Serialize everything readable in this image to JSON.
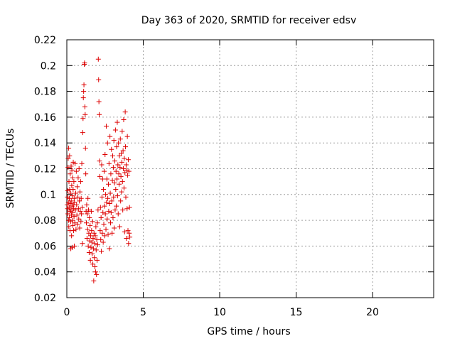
{
  "chart_data": {
    "type": "scatter",
    "title": "Day 363 of 2020, SRMTID for receiver edsv",
    "xlabel": "GPS time / hours",
    "ylabel": "SRMTID / TECUs",
    "xlim": [
      0,
      24
    ],
    "ylim": [
      0.02,
      0.22
    ],
    "x_ticks": [
      0,
      5,
      10,
      15,
      20
    ],
    "x_tick_labels": [
      "0",
      "5",
      "10",
      "15",
      "20"
    ],
    "y_ticks": [
      0.02,
      0.04,
      0.06,
      0.08,
      0.1,
      0.12,
      0.14,
      0.16,
      0.18,
      0.2,
      0.22
    ],
    "y_tick_labels": [
      "0.02",
      "0.04",
      "0.06",
      "0.08",
      "0.1",
      "0.12",
      "0.14",
      "0.16",
      "0.18",
      "0.2",
      "0.22"
    ],
    "grid": true,
    "marker": "+",
    "color": "#dd0000",
    "series": [
      {
        "points": [
          [
            0.02,
            0.092
          ],
          [
            0.04,
            0.098
          ],
          [
            0.05,
            0.089
          ],
          [
            0.06,
            0.103
          ],
          [
            0.07,
            0.085
          ],
          [
            0.08,
            0.121
          ],
          [
            0.09,
            0.128
          ],
          [
            0.1,
            0.094
          ],
          [
            0.11,
            0.08
          ],
          [
            0.12,
            0.136
          ],
          [
            0.13,
            0.075
          ],
          [
            0.14,
            0.11
          ],
          [
            0.15,
            0.09
          ],
          [
            0.16,
            0.097
          ],
          [
            0.17,
            0.082
          ],
          [
            0.18,
            0.13
          ],
          [
            0.19,
            0.104
          ],
          [
            0.2,
            0.087
          ],
          [
            0.21,
            0.072
          ],
          [
            0.22,
            0.116
          ],
          [
            0.23,
            0.093
          ],
          [
            0.24,
            0.101
          ],
          [
            0.25,
            0.079
          ],
          [
            0.26,
            0.058
          ],
          [
            0.27,
            0.088
          ],
          [
            0.28,
            0.122
          ],
          [
            0.29,
            0.095
          ],
          [
            0.3,
            0.084
          ],
          [
            0.31,
            0.068
          ],
          [
            0.32,
            0.107
          ],
          [
            0.33,
            0.119
          ],
          [
            0.34,
            0.091
          ],
          [
            0.35,
            0.059
          ],
          [
            0.36,
            0.099
          ],
          [
            0.37,
            0.08
          ],
          [
            0.38,
            0.113
          ],
          [
            0.39,
            0.086
          ],
          [
            0.4,
            0.076
          ],
          [
            0.41,
            0.104
          ],
          [
            0.42,
            0.125
          ],
          [
            0.43,
            0.092
          ],
          [
            0.44,
            0.072
          ],
          [
            0.45,
            0.089
          ],
          [
            0.46,
            0.11
          ],
          [
            0.47,
            0.083
          ],
          [
            0.48,
            0.097
          ],
          [
            0.49,
            0.06
          ],
          [
            0.5,
            0.094
          ],
          [
            0.52,
            0.078
          ],
          [
            0.54,
            0.124
          ],
          [
            0.56,
            0.088
          ],
          [
            0.58,
            0.101
          ],
          [
            0.6,
            0.073
          ],
          [
            0.62,
            0.118
          ],
          [
            0.64,
            0.092
          ],
          [
            0.66,
            0.084
          ],
          [
            0.68,
            0.106
          ],
          [
            0.7,
            0.077
          ],
          [
            0.72,
            0.098
          ],
          [
            0.74,
            0.113
          ],
          [
            0.76,
            0.089
          ],
          [
            0.78,
            0.081
          ],
          [
            0.8,
            0.12
          ],
          [
            0.82,
            0.095
          ],
          [
            0.84,
            0.074
          ],
          [
            0.86,
            0.102
          ],
          [
            0.88,
            0.087
          ],
          [
            0.9,
            0.11
          ],
          [
            0.92,
            0.079
          ],
          [
            0.94,
            0.097
          ],
          [
            0.96,
            0.085
          ],
          [
            0.98,
            0.124
          ],
          [
            1.0,
            0.09
          ],
          [
            1.02,
            0.062
          ],
          [
            1.04,
            0.148
          ],
          [
            1.06,
            0.159
          ],
          [
            1.08,
            0.175
          ],
          [
            1.1,
            0.18
          ],
          [
            1.12,
            0.185
          ],
          [
            1.14,
            0.201
          ],
          [
            1.16,
            0.202
          ],
          [
            1.18,
            0.168
          ],
          [
            1.2,
            0.162
          ],
          [
            1.22,
            0.136
          ],
          [
            1.24,
            0.116
          ],
          [
            1.26,
            0.087
          ],
          [
            1.28,
            0.078
          ],
          [
            1.3,
            0.092
          ],
          [
            1.32,
            0.066
          ],
          [
            1.34,
            0.085
          ],
          [
            1.36,
            0.073
          ],
          [
            1.38,
            0.097
          ],
          [
            1.4,
            0.06
          ],
          [
            1.42,
            0.088
          ],
          [
            1.44,
            0.07
          ],
          [
            1.46,
            0.055
          ],
          [
            1.48,
            0.082
          ],
          [
            1.5,
            0.064
          ],
          [
            1.52,
            0.076
          ],
          [
            1.54,
            0.049
          ],
          [
            1.56,
            0.068
          ],
          [
            1.58,
            0.059
          ],
          [
            1.6,
            0.087
          ],
          [
            1.62,
            0.072
          ],
          [
            1.64,
            0.063
          ],
          [
            1.66,
            0.054
          ],
          [
            1.68,
            0.079
          ],
          [
            1.7,
            0.046
          ],
          [
            1.72,
            0.066
          ],
          [
            1.74,
            0.058
          ],
          [
            1.76,
            0.033
          ],
          [
            1.78,
            0.07
          ],
          [
            1.8,
            0.051
          ],
          [
            1.82,
            0.062
          ],
          [
            1.84,
            0.044
          ],
          [
            1.86,
            0.068
          ],
          [
            1.88,
            0.04
          ],
          [
            1.9,
            0.075
          ],
          [
            1.92,
            0.057
          ],
          [
            1.94,
            0.038
          ],
          [
            1.96,
            0.065
          ],
          [
            1.98,
            0.049
          ],
          [
            2.0,
            0.078
          ],
          [
            2.02,
            0.061
          ],
          [
            2.04,
            0.088
          ],
          [
            2.06,
            0.205
          ],
          [
            2.08,
            0.189
          ],
          [
            2.1,
            0.172
          ],
          [
            2.12,
            0.162
          ],
          [
            2.14,
            0.126
          ],
          [
            2.16,
            0.114
          ],
          [
            2.18,
            0.072
          ],
          [
            2.2,
            0.09
          ],
          [
            2.22,
            0.065
          ],
          [
            2.24,
            0.082
          ],
          [
            2.26,
            0.056
          ],
          [
            2.28,
            0.123
          ],
          [
            2.3,
            0.098
          ],
          [
            2.32,
            0.07
          ],
          [
            2.34,
            0.112
          ],
          [
            2.36,
            0.086
          ],
          [
            2.38,
            0.063
          ],
          [
            2.4,
            0.104
          ],
          [
            2.42,
            0.077
          ],
          [
            2.44,
            0.118
          ],
          [
            2.46,
            0.091
          ],
          [
            2.48,
            0.068
          ],
          [
            2.5,
            0.131
          ],
          [
            2.52,
            0.085
          ],
          [
            2.54,
            0.1
          ],
          [
            2.56,
            0.073
          ],
          [
            2.58,
            0.153
          ],
          [
            2.6,
            0.094
          ],
          [
            2.62,
            0.112
          ],
          [
            2.64,
            0.081
          ],
          [
            2.66,
            0.14
          ],
          [
            2.68,
            0.097
          ],
          [
            2.7,
            0.069
          ],
          [
            2.72,
            0.108
          ],
          [
            2.74,
            0.087
          ],
          [
            2.76,
            0.124
          ],
          [
            2.78,
            0.058
          ],
          [
            2.8,
            0.093
          ],
          [
            2.82,
            0.145
          ],
          [
            2.84,
            0.101
          ],
          [
            2.86,
            0.078
          ],
          [
            2.88,
            0.116
          ],
          [
            2.9,
            0.086
          ],
          [
            2.92,
            0.135
          ],
          [
            2.94,
            0.095
          ],
          [
            2.96,
            0.07
          ],
          [
            2.98,
            0.111
          ],
          [
            3.0,
            0.13
          ],
          [
            3.02,
            0.082
          ],
          [
            3.04,
            0.121
          ],
          [
            3.06,
            0.098
          ],
          [
            3.08,
            0.142
          ],
          [
            3.1,
            0.074
          ],
          [
            3.12,
            0.109
          ],
          [
            3.14,
            0.126
          ],
          [
            3.16,
            0.088
          ],
          [
            3.18,
            0.15
          ],
          [
            3.2,
            0.104
          ],
          [
            3.22,
            0.118
          ],
          [
            3.24,
            0.091
          ],
          [
            3.26,
            0.137
          ],
          [
            3.28,
            0.112
          ],
          [
            3.3,
            0.156
          ],
          [
            3.32,
            0.099
          ],
          [
            3.34,
            0.123
          ],
          [
            3.36,
            0.085
          ],
          [
            3.38,
            0.14
          ],
          [
            3.4,
            0.116
          ],
          [
            3.42,
            0.108
          ],
          [
            3.44,
            0.13
          ],
          [
            3.46,
            0.075
          ],
          [
            3.48,
            0.121
          ],
          [
            3.5,
            0.143
          ],
          [
            3.52,
            0.095
          ],
          [
            3.54,
            0.114
          ],
          [
            3.56,
            0.132
          ],
          [
            3.58,
            0.102
          ],
          [
            3.6,
            0.125
          ],
          [
            3.62,
            0.149
          ],
          [
            3.64,
            0.11
          ],
          [
            3.66,
            0.088
          ],
          [
            3.68,
            0.134
          ],
          [
            3.7,
            0.12
          ],
          [
            3.72,
            0.158
          ],
          [
            3.74,
            0.105
          ],
          [
            3.76,
            0.128
          ],
          [
            3.78,
            0.071
          ],
          [
            3.8,
            0.117
          ],
          [
            3.82,
            0.164
          ],
          [
            3.84,
            0.137
          ],
          [
            3.86,
            0.098
          ],
          [
            3.88,
            0.123
          ],
          [
            3.9,
            0.066
          ],
          [
            3.92,
            0.119
          ],
          [
            3.94,
            0.089
          ],
          [
            3.96,
            0.145
          ],
          [
            3.98,
            0.115
          ],
          [
            4.0,
            0.072
          ],
          [
            4.02,
            0.127
          ],
          [
            4.04,
            0.062
          ],
          [
            4.06,
            0.118
          ],
          [
            4.08,
            0.07
          ],
          [
            4.1,
            0.09
          ],
          [
            4.12,
            0.067
          ]
        ]
      }
    ]
  }
}
